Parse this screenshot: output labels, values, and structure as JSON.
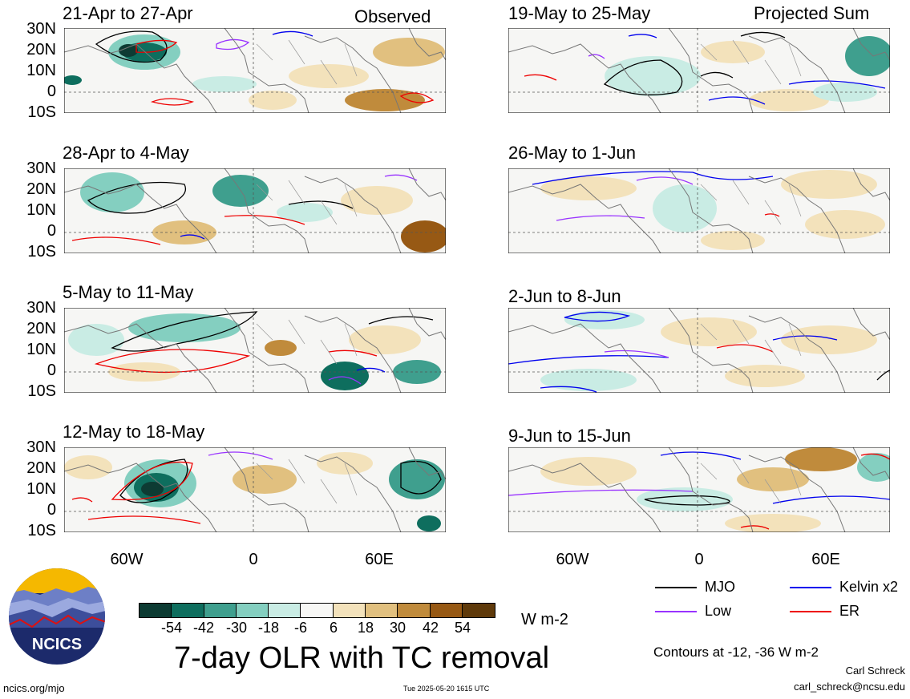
{
  "colors": {
    "mjo": "#000000",
    "low": "#9933ff",
    "kelvin": "#0000ee",
    "er": "#ee0000",
    "colorbar": [
      "#0d3b33",
      "#0e6e5e",
      "#3f9f8e",
      "#84cfc0",
      "#c9ece4",
      "#f7f7f5",
      "#f3e2bb",
      "#e1c07f",
      "#c08b3c",
      "#975914",
      "#5f3a0b"
    ],
    "sea": "#ffffff",
    "neutral": "#f6f6f4"
  },
  "panels": {
    "p1": {
      "title": "21-Apr to 27-Apr",
      "tag": "Observed"
    },
    "p2": {
      "title": "28-Apr to 4-May"
    },
    "p3": {
      "title": "5-May to 11-May"
    },
    "p4": {
      "title": "12-May to 18-May"
    },
    "p5": {
      "title": "19-May to 25-May",
      "tag": "Projected Sum"
    },
    "p6": {
      "title": "26-May to 1-Jun"
    },
    "p7": {
      "title": "2-Jun to 8-Jun"
    },
    "p8": {
      "title": "9-Jun to 15-Jun"
    }
  },
  "lat_labels": [
    "30N",
    "20N",
    "10N",
    "0",
    "10S"
  ],
  "lon_labels": [
    "60W",
    "0",
    "60E"
  ],
  "colorbar": {
    "labels": [
      "-54",
      "-42",
      "-30",
      "-18",
      "-6",
      "6",
      "18",
      "30",
      "42",
      "54"
    ],
    "units": "W m-2"
  },
  "legend": {
    "mjo": "MJO",
    "kelvin": "Kelvin x2",
    "low": "Low",
    "er": "ER"
  },
  "main_title": "7-day OLR with TC removal",
  "contours_note": "Contours at -12, -36 W m-2",
  "author": "Carl Schreck",
  "email": "carl_schreck@ncsu.edu",
  "site": "ncics.org/mjo",
  "timestamp": "Tue 2025-05-20 1615 UTC",
  "logo_text": "NCICS"
}
